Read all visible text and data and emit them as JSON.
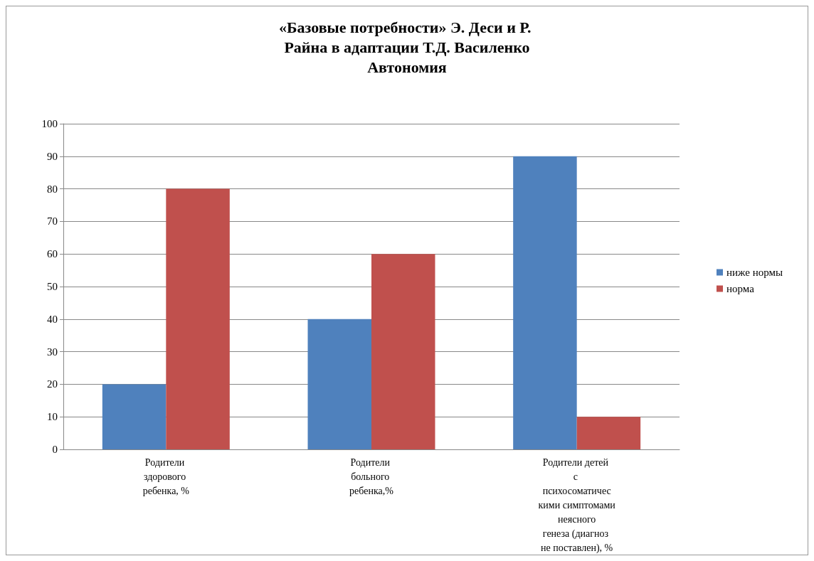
{
  "chart_data": {
    "type": "bar",
    "title": "«Базовые потребности» Э. Деси и Р. Райна в адаптации Т.Д. Василенко",
    "subtitle": "Автономия",
    "categories": [
      "Родители здорового ребенка, %",
      "Родители больного ребенка,%",
      "Родители детей с психосоматическими симптомами неясного генеза (диагноз не поставлен), %"
    ],
    "series": [
      {
        "name": "ниже нормы",
        "color": "#4f81bd",
        "values": [
          20,
          40,
          90
        ]
      },
      {
        "name": "норма",
        "color": "#c0504d",
        "values": [
          80,
          60,
          10
        ]
      }
    ],
    "ylim": [
      0,
      100
    ],
    "yticks": [
      0,
      10,
      20,
      30,
      40,
      50,
      60,
      70,
      80,
      90,
      100
    ],
    "grid": "y",
    "legend": "right"
  }
}
